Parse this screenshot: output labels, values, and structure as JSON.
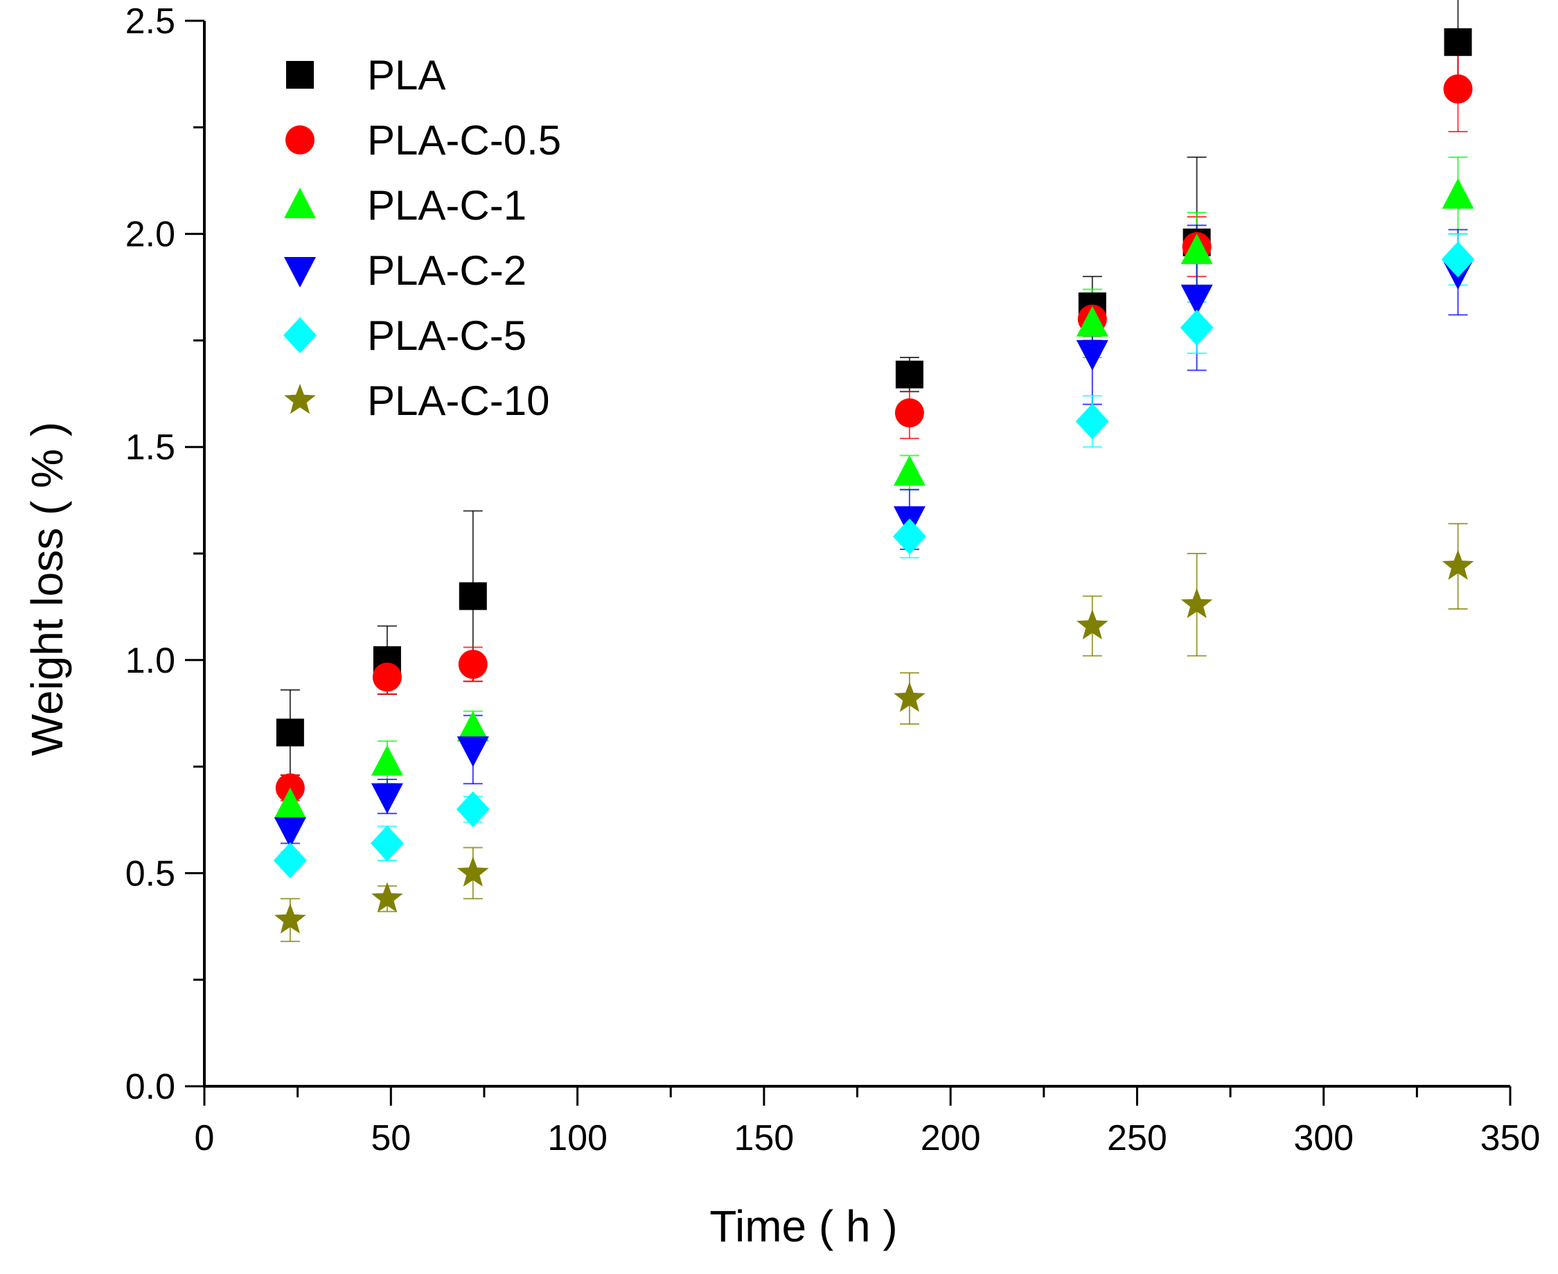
{
  "chart_data": {
    "type": "scatter",
    "title": "",
    "xlabel": "Time ( h )",
    "ylabel": "Weight loss ( % )",
    "xlim": [
      0,
      350
    ],
    "ylim": [
      0,
      2.5
    ],
    "xticks": [
      0,
      50,
      100,
      150,
      200,
      250,
      300,
      350
    ],
    "yticks": [
      0.0,
      0.5,
      1.0,
      1.5,
      2.0,
      2.5
    ],
    "xtick_labels": [
      "0",
      "50",
      "100",
      "150",
      "200",
      "250",
      "300",
      "350"
    ],
    "ytick_labels": [
      "0.0",
      "0.5",
      "1.0",
      "1.5",
      "2.0",
      "2.5"
    ],
    "legend_position": "top-left",
    "grid": false,
    "x": [
      23,
      49,
      72,
      189,
      238,
      266,
      336
    ],
    "series": [
      {
        "name": "PLA",
        "marker": "square",
        "color": "#000000",
        "values": [
          0.83,
          1.0,
          1.15,
          1.67,
          1.83,
          1.98,
          2.45
        ],
        "errors": [
          0.1,
          0.08,
          0.2,
          0.04,
          0.07,
          0.2,
          0.12
        ]
      },
      {
        "name": "PLA-C-0.5",
        "marker": "circle",
        "color": "#ff0000",
        "values": [
          0.7,
          0.96,
          0.99,
          1.58,
          1.8,
          1.97,
          2.34
        ],
        "errors": [
          0.03,
          0.04,
          0.04,
          0.06,
          0.05,
          0.07,
          0.1
        ]
      },
      {
        "name": "PLA-C-1",
        "marker": "triangle-up",
        "color": "#00ff00",
        "values": [
          0.66,
          0.76,
          0.84,
          1.44,
          1.79,
          1.96,
          2.09
        ],
        "errors": [
          0.02,
          0.05,
          0.04,
          0.04,
          0.08,
          0.09,
          0.09
        ]
      },
      {
        "name": "PLA-C-2",
        "marker": "triangle-down",
        "color": "#0000ff",
        "values": [
          0.6,
          0.68,
          0.79,
          1.33,
          1.72,
          1.85,
          1.91
        ],
        "errors": [
          0.03,
          0.04,
          0.08,
          0.07,
          0.12,
          0.17,
          0.1
        ]
      },
      {
        "name": "PLA-C-5",
        "marker": "diamond",
        "color": "#00ffff",
        "values": [
          0.53,
          0.57,
          0.65,
          1.29,
          1.56,
          1.78,
          1.94
        ],
        "errors": [
          0.02,
          0.04,
          0.03,
          0.05,
          0.06,
          0.06,
          0.06
        ]
      },
      {
        "name": "PLA-C-10",
        "marker": "star",
        "color": "#808000",
        "values": [
          0.39,
          0.44,
          0.5,
          0.91,
          1.08,
          1.13,
          1.22
        ],
        "errors": [
          0.05,
          0.03,
          0.06,
          0.06,
          0.07,
          0.12,
          0.1
        ]
      }
    ]
  }
}
